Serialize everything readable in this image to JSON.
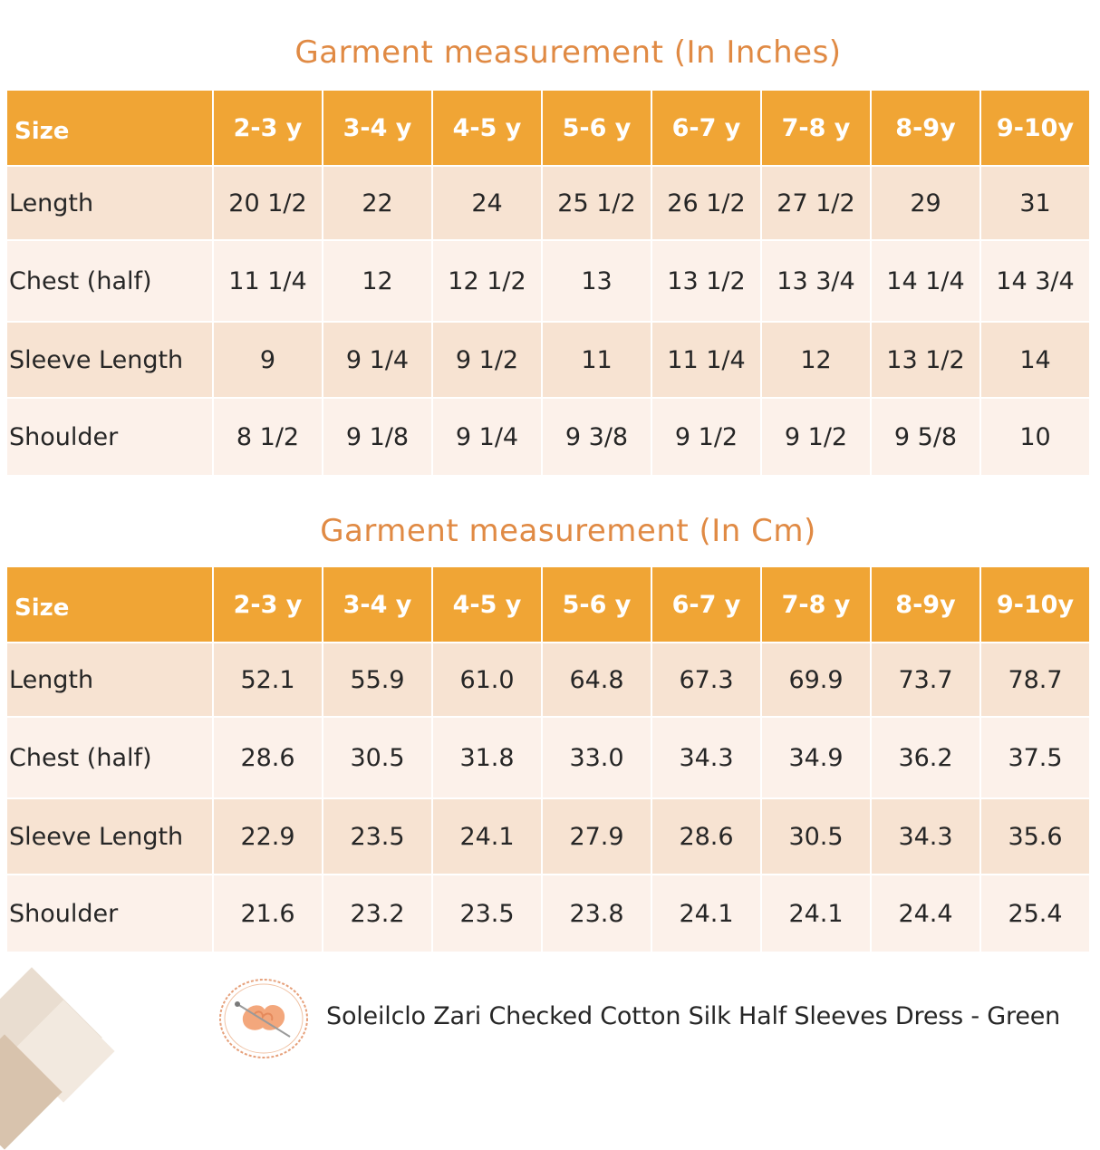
{
  "title_inches": "Garment measurement (In Inches)",
  "title_cm": "Garment measurement (In Cm)",
  "table_inches": {
    "headers": [
      "Size",
      "2-3 y",
      "3-4 y",
      "4-5 y",
      "5-6 y",
      "6-7 y",
      "7-8 y",
      "8-9y",
      "9-10y"
    ],
    "rows": [
      [
        "Length",
        "20 1/2",
        "22",
        "24",
        "25 1/2",
        "26 1/2",
        "27 1/2",
        "29",
        "31"
      ],
      [
        "Chest (half)",
        "11 1/4",
        "12",
        "12 1/2",
        "13",
        "13 1/2",
        "13 3/4",
        "14 1/4",
        "14 3/4"
      ],
      [
        "Sleeve Length",
        "9",
        "9 1/4",
        "9 1/2",
        "11",
        "11 1/4",
        "12",
        "13 1/2",
        "14"
      ],
      [
        "Shoulder",
        "8 1/2",
        "9 1/8",
        "9 1/4",
        "9 3/8",
        "9 1/2",
        "9 1/2",
        "9 5/8",
        "10"
      ]
    ]
  },
  "table_cm": {
    "headers": [
      "Size",
      "2-3 y",
      "3-4 y",
      "4-5 y",
      "5-6 y",
      "6-7 y",
      "7-8 y",
      "8-9y",
      "9-10y"
    ],
    "rows": [
      [
        "Length",
        "52.1",
        "55.9",
        "61.0",
        "64.8",
        "67.3",
        "69.9",
        "73.7",
        "78.7"
      ],
      [
        "Chest (half)",
        "28.6",
        "30.5",
        "31.8",
        "33.0",
        "34.3",
        "34.9",
        "36.2",
        "37.5"
      ],
      [
        "Sleeve Length",
        "22.9",
        "23.5",
        "24.1",
        "27.9",
        "28.6",
        "30.5",
        "34.3",
        "35.6"
      ],
      [
        "Shoulder",
        "21.6",
        "23.2",
        "23.5",
        "23.8",
        "24.1",
        "24.1",
        "24.4",
        "25.4"
      ]
    ]
  },
  "product_name": "Soleilclo Zari Checked Cotton Silk Half Sleeves Dress - Green",
  "colors": {
    "header_bg": "#f0a535",
    "title": "#e08a44",
    "row_dark": "#f7e3d2",
    "row_light": "#fcf1ea"
  }
}
